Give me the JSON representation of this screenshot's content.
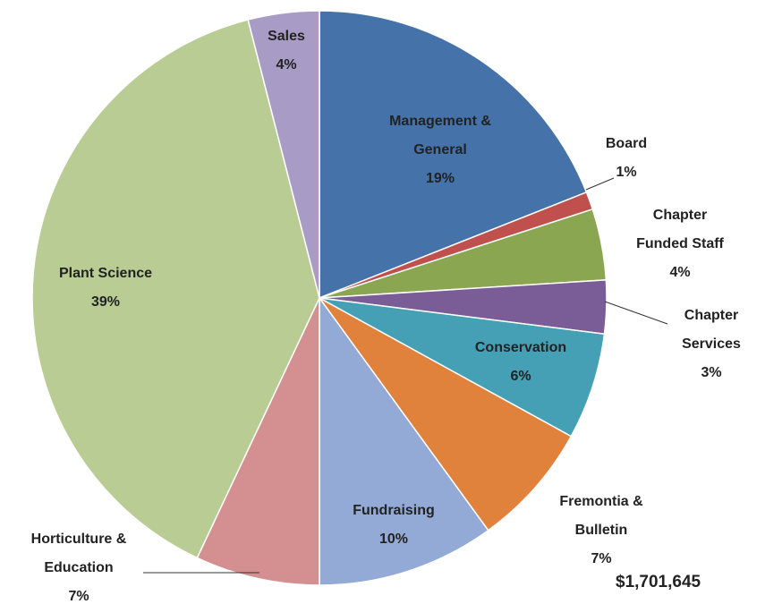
{
  "chart_data": {
    "type": "pie",
    "categories": [
      "Management & General",
      "Board",
      "Chapter Funded Staff",
      "Chapter Services",
      "Conservation",
      "Fremontia & Bulletin",
      "Fundraising",
      "Horticulture & Education",
      "Plant Science",
      "Sales"
    ],
    "values": [
      19,
      1,
      4,
      3,
      6,
      7,
      10,
      7,
      39,
      4
    ],
    "value_labels": [
      "19%",
      "1%",
      "4%",
      "3%",
      "6%",
      "7%",
      "10%",
      "7%",
      "39%",
      "4%"
    ],
    "colors": [
      "#4672aa",
      "#c0504d",
      "#8aa650",
      "#7a5c97",
      "#45a0b6",
      "#e0823c",
      "#93aad6",
      "#d49090",
      "#b8cc94",
      "#a89cc6"
    ],
    "annotation": "$1,701,645"
  }
}
